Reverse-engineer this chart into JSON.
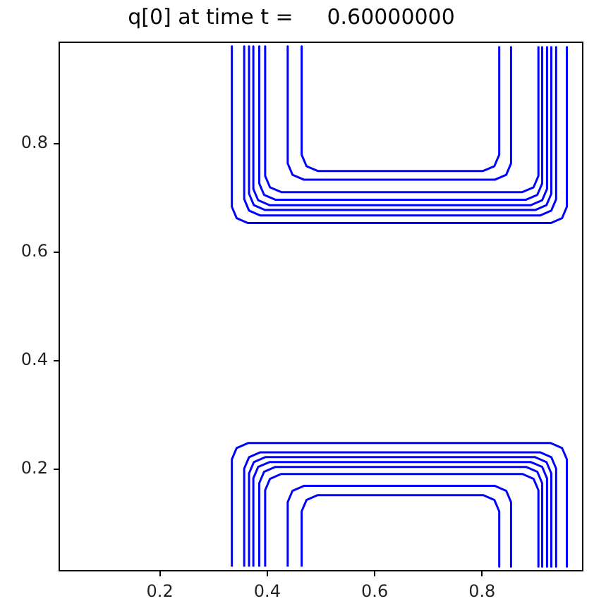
{
  "chart_data": {
    "type": "line",
    "title": "q[0] at time t =     0.60000000",
    "xlim": [
      0.0125,
      0.9875
    ],
    "ylim": [
      0.0125,
      0.9875
    ],
    "xticks": [
      0.2,
      0.4,
      0.6,
      0.8
    ],
    "yticks": [
      0.2,
      0.4,
      0.6,
      0.8
    ],
    "grid": false,
    "legend": false,
    "marker": "none",
    "line_style": "solid",
    "series": [
      {
        "color": "#0000ff",
        "x": [
          0.334,
          0.334,
          0.343,
          0.364,
          0.928,
          0.949,
          0.958,
          0.958
        ],
        "values": [
          0.98,
          0.684,
          0.663,
          0.654,
          0.654,
          0.663,
          0.684,
          0.98
        ]
      },
      {
        "color": "#0000ff",
        "x": [
          0.357,
          0.357,
          0.366,
          0.387,
          0.908,
          0.929,
          0.938,
          0.938
        ],
        "values": [
          0.98,
          0.698,
          0.677,
          0.668,
          0.668,
          0.677,
          0.698,
          0.98
        ]
      },
      {
        "color": "#0000ff",
        "x": [
          0.366,
          0.366,
          0.375,
          0.396,
          0.899,
          0.92,
          0.929,
          0.929
        ],
        "values": [
          0.98,
          0.708,
          0.687,
          0.678,
          0.678,
          0.687,
          0.708,
          0.98
        ]
      },
      {
        "color": "#0000ff",
        "x": [
          0.374,
          0.374,
          0.383,
          0.404,
          0.891,
          0.912,
          0.921,
          0.921
        ],
        "values": [
          0.98,
          0.717,
          0.696,
          0.687,
          0.687,
          0.696,
          0.717,
          0.98
        ]
      },
      {
        "color": "#0000ff",
        "x": [
          0.385,
          0.385,
          0.394,
          0.415,
          0.882,
          0.903,
          0.912,
          0.912
        ],
        "values": [
          0.98,
          0.727,
          0.706,
          0.697,
          0.697,
          0.706,
          0.727,
          0.98
        ]
      },
      {
        "color": "#0000ff",
        "x": [
          0.396,
          0.396,
          0.405,
          0.426,
          0.875,
          0.896,
          0.905,
          0.905
        ],
        "values": [
          0.98,
          0.741,
          0.72,
          0.711,
          0.711,
          0.72,
          0.741,
          0.98
        ]
      },
      {
        "color": "#0000ff",
        "x": [
          0.438,
          0.438,
          0.447,
          0.468,
          0.824,
          0.845,
          0.854,
          0.854
        ],
        "values": [
          0.98,
          0.764,
          0.743,
          0.734,
          0.734,
          0.743,
          0.764,
          0.98
        ]
      },
      {
        "color": "#0000ff",
        "x": [
          0.464,
          0.464,
          0.473,
          0.494,
          0.802,
          0.823,
          0.832,
          0.832
        ],
        "values": [
          0.98,
          0.78,
          0.759,
          0.75,
          0.75,
          0.759,
          0.78,
          0.98
        ]
      },
      {
        "color": "#0000ff",
        "x": [
          0.334,
          0.334,
          0.343,
          0.364,
          0.928,
          0.949,
          0.958,
          0.958
        ],
        "values": [
          0.02,
          0.218,
          0.239,
          0.248,
          0.248,
          0.239,
          0.218,
          0.02
        ]
      },
      {
        "color": "#0000ff",
        "x": [
          0.357,
          0.357,
          0.366,
          0.387,
          0.908,
          0.929,
          0.938,
          0.938
        ],
        "values": [
          0.02,
          0.201,
          0.222,
          0.231,
          0.231,
          0.222,
          0.201,
          0.02
        ]
      },
      {
        "color": "#0000ff",
        "x": [
          0.366,
          0.366,
          0.375,
          0.396,
          0.899,
          0.92,
          0.929,
          0.929
        ],
        "values": [
          0.02,
          0.192,
          0.213,
          0.222,
          0.222,
          0.213,
          0.192,
          0.02
        ]
      },
      {
        "color": "#0000ff",
        "x": [
          0.374,
          0.374,
          0.383,
          0.404,
          0.891,
          0.912,
          0.921,
          0.921
        ],
        "values": [
          0.02,
          0.183,
          0.204,
          0.213,
          0.213,
          0.204,
          0.183,
          0.02
        ]
      },
      {
        "color": "#0000ff",
        "x": [
          0.385,
          0.385,
          0.394,
          0.415,
          0.882,
          0.903,
          0.912,
          0.912
        ],
        "values": [
          0.02,
          0.174,
          0.195,
          0.204,
          0.204,
          0.195,
          0.174,
          0.02
        ]
      },
      {
        "color": "#0000ff",
        "x": [
          0.396,
          0.396,
          0.405,
          0.426,
          0.875,
          0.896,
          0.905,
          0.905
        ],
        "values": [
          0.02,
          0.161,
          0.182,
          0.191,
          0.191,
          0.182,
          0.161,
          0.02
        ]
      },
      {
        "color": "#0000ff",
        "x": [
          0.438,
          0.438,
          0.447,
          0.468,
          0.824,
          0.845,
          0.854,
          0.854
        ],
        "values": [
          0.02,
          0.139,
          0.16,
          0.169,
          0.169,
          0.16,
          0.139,
          0.02
        ]
      },
      {
        "color": "#0000ff",
        "x": [
          0.464,
          0.464,
          0.473,
          0.494,
          0.802,
          0.823,
          0.832,
          0.832
        ],
        "values": [
          0.02,
          0.122,
          0.143,
          0.152,
          0.152,
          0.143,
          0.122,
          0.02
        ]
      }
    ]
  }
}
